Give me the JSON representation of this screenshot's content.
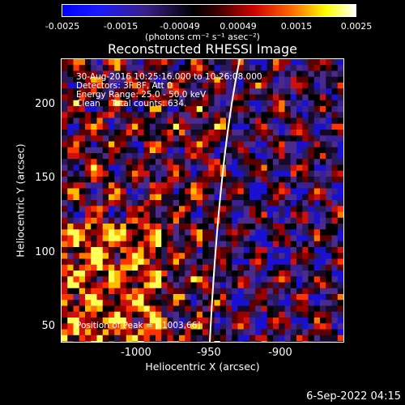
{
  "colorbar": {
    "ticks": [
      "-0.0025",
      "-0.0015",
      "-0.00049",
      "0.00049",
      "0.0015",
      "0.0025"
    ],
    "units_label": "(photons cm⁻² s⁻¹ asec⁻²)",
    "colormap_stops": [
      "#0000ff",
      "#000000",
      "#ff0000",
      "#ffff00",
      "#ffffff"
    ]
  },
  "plot": {
    "title": "Reconstructed RHESSI Image",
    "annotations": [
      "30-Aug-2016 10:25:16.000 to 10:26:08.000",
      "Detectors: 3F 8F, Att 0",
      "Energy Range: 25.0 - 50.0 keV",
      "Clean    Total counts: 634."
    ],
    "peak_label": "Position of Peak = [-1003,66]",
    "xlabel": "Heliocentric X (arcsec)",
    "ylabel": "Heliocentric Y (arcsec)",
    "xticks": [
      "-1000",
      "-950",
      "-900"
    ],
    "yticks": [
      "200",
      "150",
      "100",
      "50"
    ],
    "xlim": [
      -1044,
      -865
    ],
    "ylim": [
      36,
      227
    ]
  },
  "datestamp": "6-Sep-2022 04:15"
}
